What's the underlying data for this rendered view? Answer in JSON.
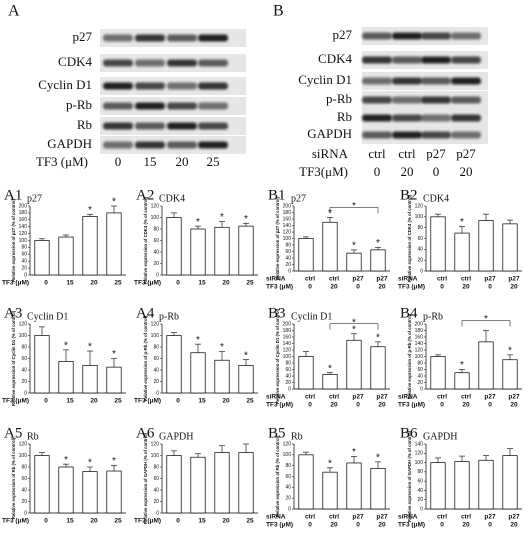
{
  "blots": [
    {
      "label": "A",
      "rows": [
        "p27",
        "CDK4",
        "Cyclin D1",
        "p-Rb",
        "Rb",
        "GAPDH"
      ],
      "condition_rows": [
        {
          "label": "TF3 (μM)",
          "values": [
            "0",
            "15",
            "20",
            "25"
          ]
        }
      ]
    },
    {
      "label": "B",
      "rows": [
        "p27",
        "CDK4",
        "Cyclin D1",
        "p-Rb",
        "Rb",
        "GAPDH"
      ],
      "condition_rows": [
        {
          "label": "siRNA",
          "values": [
            "ctrl",
            "ctrl",
            "p27",
            "p27"
          ]
        },
        {
          "label": "TF3(μM)",
          "values": [
            "0",
            "20",
            "0",
            "20"
          ]
        }
      ]
    }
  ],
  "chart_data": [
    {
      "type": "bar",
      "label": "A1",
      "subtitle": "p27",
      "ylabel": "Relative expression of p27 (% of control)",
      "category_rows": [
        {
          "label": "TF3 (μM)",
          "values": [
            "0",
            "15",
            "20",
            "25"
          ]
        }
      ],
      "values": [
        100,
        110,
        170,
        180
      ],
      "errors": [
        5,
        6,
        6,
        20
      ],
      "markers": [
        {
          "index": 2,
          "label": "*"
        },
        {
          "index": 3,
          "label": "*"
        }
      ],
      "ylim": [
        0,
        200
      ],
      "yticks": [
        0,
        20,
        40,
        60,
        80,
        100,
        120,
        140,
        160,
        180,
        200
      ]
    },
    {
      "type": "bar",
      "label": "A2",
      "subtitle": "CDK4",
      "ylabel": "Relative expression of CDK4 (% of control)",
      "category_rows": [
        {
          "label": "TF3 (μM)",
          "values": [
            "0",
            "15",
            "20",
            "25"
          ]
        }
      ],
      "values": [
        100,
        80,
        83,
        85
      ],
      "errors": [
        8,
        5,
        10,
        5
      ],
      "markers": [
        {
          "index": 1,
          "label": "*"
        },
        {
          "index": 2,
          "label": "*"
        },
        {
          "index": 3,
          "label": "*"
        }
      ],
      "ylim": [
        0,
        120
      ],
      "yticks": [
        0,
        20,
        40,
        60,
        80,
        100,
        120
      ]
    },
    {
      "type": "bar",
      "label": "B1",
      "subtitle": "p27",
      "ylabel": "Relative expression of p27 (% of control)",
      "category_rows": [
        {
          "label": "siRNA",
          "values": [
            "ctrl",
            "ctrl",
            "p27",
            "p27"
          ]
        },
        {
          "label": "TF3 (μM)",
          "values": [
            "0",
            "20",
            "0",
            "20"
          ]
        }
      ],
      "values": [
        100,
        150,
        55,
        65
      ],
      "errors": [
        5,
        15,
        10,
        8
      ],
      "markers": [
        {
          "index": 1,
          "label": "*"
        },
        {
          "index": 2,
          "label": "*"
        },
        {
          "index": 3,
          "label": "*"
        }
      ],
      "brackets": [
        {
          "from": 1,
          "to": 3,
          "label": "*"
        }
      ],
      "ylim": [
        0,
        200
      ],
      "yticks": [
        0,
        20,
        40,
        60,
        80,
        100,
        120,
        140,
        160,
        180,
        200
      ]
    },
    {
      "type": "bar",
      "label": "B2",
      "subtitle": "CDK4",
      "ylabel": "Relative expression of CDK4 (% of control)",
      "category_rows": [
        {
          "label": "siRNA",
          "values": [
            "ctrl",
            "ctrl",
            "p27",
            "p27"
          ]
        },
        {
          "label": "TF3 (μM)",
          "values": [
            "0",
            "20",
            "0",
            "20"
          ]
        }
      ],
      "values": [
        100,
        70,
        93,
        87
      ],
      "errors": [
        5,
        12,
        12,
        7
      ],
      "markers": [
        {
          "index": 1,
          "label": "*"
        }
      ],
      "ylim": [
        0,
        120
      ],
      "yticks": [
        0,
        20,
        40,
        60,
        80,
        100,
        120
      ]
    },
    {
      "type": "bar",
      "label": "A3",
      "subtitle": "Cyclin D1",
      "ylabel": "Relative expression of Cyclin D1 (% of control)",
      "category_rows": [
        {
          "label": "TF3 (μM)",
          "values": [
            "0",
            "15",
            "20",
            "25"
          ]
        }
      ],
      "values": [
        100,
        55,
        48,
        45
      ],
      "errors": [
        15,
        20,
        25,
        15
      ],
      "markers": [
        {
          "index": 1,
          "label": "*"
        },
        {
          "index": 2,
          "label": "*"
        },
        {
          "index": 3,
          "label": "*"
        }
      ],
      "ylim": [
        0,
        120
      ],
      "yticks": [
        0,
        20,
        40,
        60,
        80,
        100,
        120
      ]
    },
    {
      "type": "bar",
      "label": "A4",
      "subtitle": "p-Rb",
      "ylabel": "Relative expression of p-Rb (% of control)",
      "category_rows": [
        {
          "label": "TF3 (μM)",
          "values": [
            "0",
            "15",
            "20",
            "25"
          ]
        }
      ],
      "values": [
        100,
        70,
        57,
        48
      ],
      "errors": [
        5,
        15,
        15,
        10
      ],
      "markers": [
        {
          "index": 1,
          "label": "*"
        },
        {
          "index": 2,
          "label": "*"
        },
        {
          "index": 3,
          "label": "*"
        }
      ],
      "ylim": [
        0,
        120
      ],
      "yticks": [
        0,
        20,
        40,
        60,
        80,
        100,
        120
      ]
    },
    {
      "type": "bar",
      "label": "B3",
      "subtitle": "Cyclin D1",
      "ylabel": "Relative expression of Cyclin D1 (% of control)",
      "category_rows": [
        {
          "label": "siRNA",
          "values": [
            "ctrl",
            "ctrl",
            "p27",
            "p27"
          ]
        },
        {
          "label": "TF3 (μM)",
          "values": [
            "0",
            "20",
            "0",
            "20"
          ]
        }
      ],
      "values": [
        100,
        45,
        150,
        130
      ],
      "errors": [
        15,
        5,
        20,
        15
      ],
      "markers": [
        {
          "index": 1,
          "label": "*"
        },
        {
          "index": 2,
          "label": "*"
        },
        {
          "index": 3,
          "label": "*"
        }
      ],
      "brackets": [
        {
          "from": 1,
          "to": 3,
          "label": "*"
        }
      ],
      "ylim": [
        0,
        200
      ],
      "yticks": [
        0,
        20,
        40,
        60,
        80,
        100,
        120,
        140,
        160,
        180,
        200
      ]
    },
    {
      "type": "bar",
      "label": "B4",
      "subtitle": "p-Rb",
      "ylabel": "Relative expression of p-Rb (% of control)",
      "category_rows": [
        {
          "label": "siRNA",
          "values": [
            "ctrl",
            "ctrl",
            "p27",
            "p27"
          ]
        },
        {
          "label": "TF3 (μM)",
          "values": [
            "0",
            "20",
            "0",
            "20"
          ]
        }
      ],
      "values": [
        100,
        50,
        145,
        90
      ],
      "errors": [
        5,
        10,
        35,
        15
      ],
      "markers": [
        {
          "index": 1,
          "label": "*"
        },
        {
          "index": 3,
          "label": "*"
        }
      ],
      "brackets": [
        {
          "from": 1,
          "to": 3,
          "label": "*"
        }
      ],
      "ylim": [
        0,
        200
      ],
      "yticks": [
        0,
        20,
        40,
        60,
        80,
        100,
        120,
        140,
        160,
        180,
        200
      ]
    },
    {
      "type": "bar",
      "label": "A5",
      "subtitle": "Rb",
      "ylabel": "Relative expression of Rb (% of control)",
      "category_rows": [
        {
          "label": "TF3 (μM)",
          "values": [
            "0",
            "15",
            "20",
            "25"
          ]
        }
      ],
      "values": [
        100,
        80,
        72,
        73
      ],
      "errors": [
        5,
        5,
        8,
        10
      ],
      "markers": [
        {
          "index": 1,
          "label": "*"
        },
        {
          "index": 2,
          "label": "*"
        },
        {
          "index": 3,
          "label": "*"
        }
      ],
      "ylim": [
        0,
        120
      ],
      "yticks": [
        0,
        20,
        40,
        60,
        80,
        100,
        120
      ]
    },
    {
      "type": "bar",
      "label": "A6",
      "subtitle": "GAPDH",
      "ylabel": "Relative expression of GAPDH (% of control)",
      "category_rows": [
        {
          "label": "TF3 (μM)",
          "values": [
            "0",
            "15",
            "20",
            "25"
          ]
        }
      ],
      "values": [
        100,
        97,
        105,
        105
      ],
      "errors": [
        8,
        6,
        12,
        15
      ],
      "ylim": [
        0,
        120
      ],
      "yticks": [
        0,
        20,
        40,
        60,
        80,
        100,
        120
      ]
    },
    {
      "type": "bar",
      "label": "B5",
      "subtitle": "Rb",
      "ylabel": "Relative expression of Rb (% of control)",
      "category_rows": [
        {
          "label": "siRNA",
          "values": [
            "ctrl",
            "ctrl",
            "p27",
            "p27"
          ]
        },
        {
          "label": "TF3 (μM)",
          "values": [
            "0",
            "20",
            "0",
            "20"
          ]
        }
      ],
      "values": [
        100,
        68,
        85,
        75
      ],
      "errors": [
        5,
        8,
        12,
        12
      ],
      "markers": [
        {
          "index": 1,
          "label": "*"
        },
        {
          "index": 2,
          "label": "*"
        },
        {
          "index": 3,
          "label": "*"
        }
      ],
      "ylim": [
        0,
        120
      ],
      "yticks": [
        0,
        20,
        40,
        60,
        80,
        100,
        120
      ]
    },
    {
      "type": "bar",
      "label": "B6",
      "subtitle": "GAPDH",
      "ylabel": "Relative expression of GAPDH (% of control)",
      "category_rows": [
        {
          "label": "siRNA",
          "values": [
            "ctrl",
            "ctrl",
            "p27",
            "p27"
          ]
        },
        {
          "label": "TF3 (μM)",
          "values": [
            "0",
            "20",
            "0",
            "20"
          ]
        }
      ],
      "values": [
        100,
        102,
        105,
        115
      ],
      "errors": [
        10,
        12,
        10,
        15
      ],
      "ylim": [
        0,
        140
      ],
      "yticks": [
        0,
        20,
        40,
        60,
        80,
        100,
        120,
        140
      ]
    }
  ]
}
